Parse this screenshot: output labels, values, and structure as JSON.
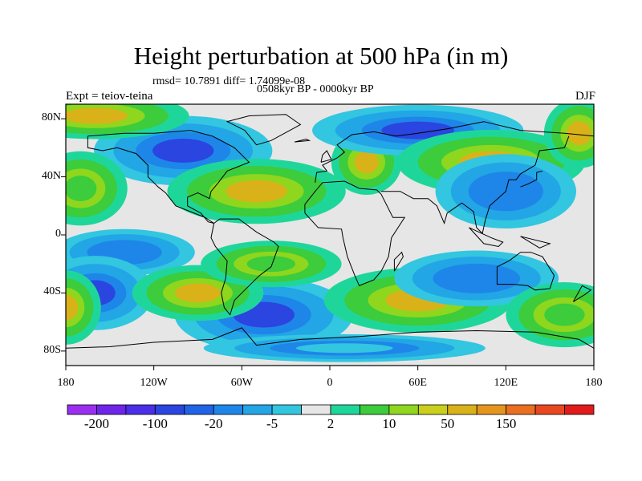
{
  "title": "Height perturbation at 500 hPa (in m)",
  "stats": "rmsd= 10.7891 diff= 1.74099e-08",
  "period": "0508kyr BP - 0000kyr BP",
  "experiment": "Expt = teiov-teina",
  "season": "DJF",
  "map": {
    "projection": "equirectangular",
    "lon_range": [
      -180,
      180
    ],
    "lat_range": [
      -90,
      90
    ],
    "y_ticks": [
      {
        "label": "80N",
        "lat": 80
      },
      {
        "label": "40N",
        "lat": 40
      },
      {
        "label": "0",
        "lat": 0
      },
      {
        "label": "40S",
        "lat": -40
      },
      {
        "label": "80S",
        "lat": -80
      }
    ],
    "x_ticks": [
      {
        "label": "180",
        "lon": -180
      },
      {
        "label": "120W",
        "lon": -120
      },
      {
        "label": "60W",
        "lon": -60
      },
      {
        "label": "0",
        "lon": 0
      },
      {
        "label": "60E",
        "lon": 60
      },
      {
        "label": "120E",
        "lon": 120
      },
      {
        "label": "180",
        "lon": 180
      }
    ],
    "background_color": "#e6e6e6"
  },
  "colorbar": {
    "colors": [
      "#9b2ff0",
      "#6f24ec",
      "#4a2ee8",
      "#2a45e0",
      "#1f63e6",
      "#1e86e8",
      "#22a6e6",
      "#32c6e0",
      "#e6e6e6",
      "#1fd69a",
      "#3ccc3c",
      "#8fd61e",
      "#c9cf1a",
      "#d9b21a",
      "#e5951d",
      "#ea6f20",
      "#e9471f",
      "#e11a1a"
    ],
    "labels": [
      {
        "text": "-200",
        "boundary": 1
      },
      {
        "text": "-100",
        "boundary": 3
      },
      {
        "text": "-20",
        "boundary": 5
      },
      {
        "text": "-5",
        "boundary": 7
      },
      {
        "text": "2",
        "boundary": 9
      },
      {
        "text": "10",
        "boundary": 11
      },
      {
        "text": "50",
        "boundary": 13
      },
      {
        "text": "150",
        "boundary": 15
      }
    ]
  },
  "field_blobs": [
    {
      "lon": -100,
      "lat": 58,
      "rx": 38,
      "ry": 15,
      "level": -100
    },
    {
      "lon": -50,
      "lat": 30,
      "rx": 38,
      "ry": 14,
      "level": 50
    },
    {
      "lon": 25,
      "lat": 50,
      "rx": 15,
      "ry": 14,
      "level": 50
    },
    {
      "lon": 60,
      "lat": 72,
      "rx": 45,
      "ry": 11,
      "level": -100
    },
    {
      "lon": 110,
      "lat": 50,
      "rx": 40,
      "ry": 14,
      "level": 50
    },
    {
      "lon": 120,
      "lat": 30,
      "rx": 30,
      "ry": 16,
      "level": -20
    },
    {
      "lon": 170,
      "lat": 70,
      "rx": 15,
      "ry": 15,
      "level": 50
    },
    {
      "lon": -160,
      "lat": 82,
      "rx": 40,
      "ry": 10,
      "level": 50
    },
    {
      "lon": -170,
      "lat": 32,
      "rx": 20,
      "ry": 16,
      "level": 10
    },
    {
      "lon": -140,
      "lat": -12,
      "rx": 30,
      "ry": 10,
      "level": -20
    },
    {
      "lon": -160,
      "lat": -40,
      "rx": 25,
      "ry": 16,
      "level": -100
    },
    {
      "lon": -45,
      "lat": -55,
      "rx": 38,
      "ry": 16,
      "level": -100
    },
    {
      "lon": -90,
      "lat": -40,
      "rx": 28,
      "ry": 12,
      "level": 50
    },
    {
      "lon": 60,
      "lat": -45,
      "rx": 40,
      "ry": 14,
      "level": 50
    },
    {
      "lon": 100,
      "lat": -30,
      "rx": 35,
      "ry": 12,
      "level": -20
    },
    {
      "lon": 160,
      "lat": -55,
      "rx": 25,
      "ry": 14,
      "level": 10
    },
    {
      "lon": -180,
      "lat": -50,
      "rx": 15,
      "ry": 16,
      "level": 50
    },
    {
      "lon": -40,
      "lat": -20,
      "rx": 30,
      "ry": 10,
      "level": 10
    },
    {
      "lon": 10,
      "lat": -78,
      "rx": 60,
      "ry": 6,
      "level": -5
    }
  ]
}
